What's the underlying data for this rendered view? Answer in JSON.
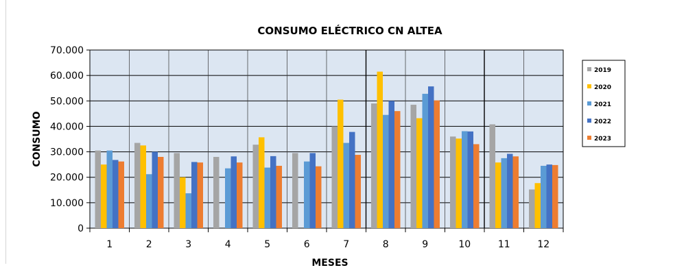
{
  "chart_data": {
    "type": "bar",
    "title": "CONSUMO ELÉCTRICO CN ALTEA",
    "xlabel": "MESES",
    "ylabel": "CONSUMO",
    "categories": [
      "1",
      "2",
      "3",
      "4",
      "5",
      "6",
      "7",
      "8",
      "9",
      "10",
      "11",
      "12"
    ],
    "ylim": [
      0,
      70000
    ],
    "yticks": [
      0,
      10000,
      20000,
      30000,
      40000,
      50000,
      60000,
      70000
    ],
    "ytick_labels": [
      "0",
      "10.000",
      "20.000",
      "30.000",
      "40.000",
      "50.000",
      "60.000",
      "70.000"
    ],
    "grid": true,
    "legend_position": "right",
    "series": [
      {
        "name": "2019",
        "color": "#a5a5a5",
        "values": [
          30500,
          33500,
          29500,
          28000,
          32800,
          29500,
          40000,
          49000,
          48500,
          36000,
          40800,
          15200
        ]
      },
      {
        "name": "2020",
        "color": "#ffc000",
        "values": [
          25000,
          32500,
          20000,
          0,
          35700,
          0,
          50500,
          61500,
          43200,
          35200,
          25800,
          17700
        ]
      },
      {
        "name": "2021",
        "color": "#5b9bd5",
        "values": [
          30500,
          21200,
          13700,
          23500,
          23800,
          26200,
          33500,
          44500,
          52800,
          38100,
          27500,
          24500
        ]
      },
      {
        "name": "2022",
        "color": "#4472c4",
        "values": [
          26800,
          30000,
          26000,
          28200,
          28300,
          29500,
          37800,
          50000,
          55700,
          38000,
          29200,
          25000
        ]
      },
      {
        "name": "2023",
        "color": "#ed7d31",
        "values": [
          26200,
          28000,
          25800,
          25800,
          24500,
          24300,
          28800,
          46000,
          50200,
          33000,
          28200,
          24800
        ]
      }
    ]
  }
}
